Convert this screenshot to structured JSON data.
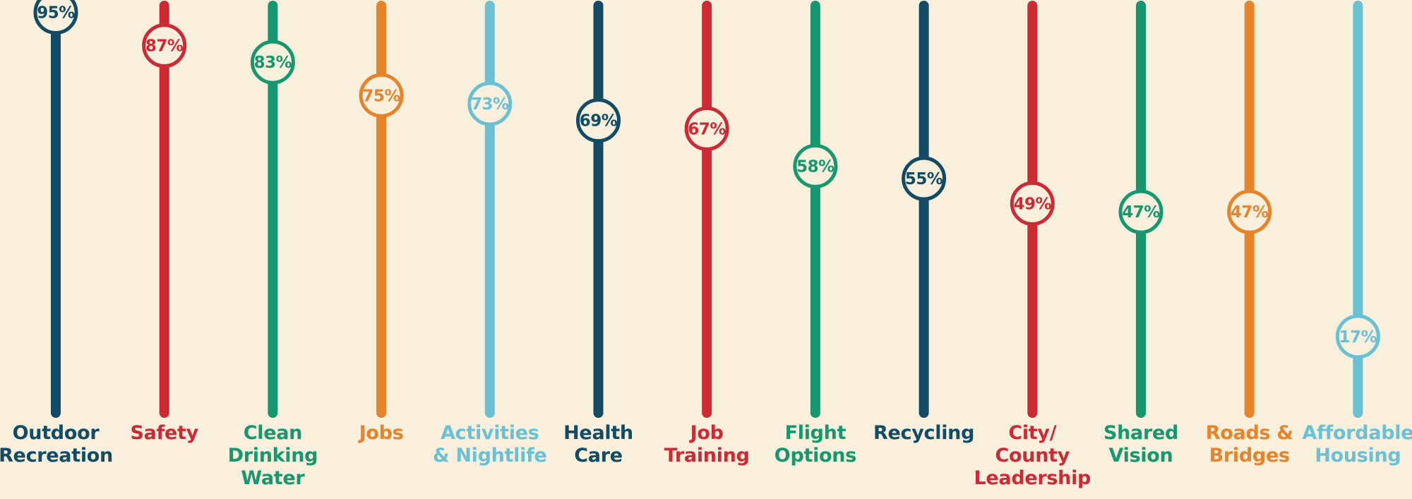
{
  "chart_data": {
    "type": "lollipop",
    "value_format": "percent",
    "ylim": [
      0,
      100
    ],
    "grid": false,
    "legend": "none",
    "title": "",
    "xlabel": "",
    "ylabel": "",
    "categories": [
      {
        "label": [
          "Outdoor",
          "Recreation"
        ],
        "value": 95,
        "color": "#124b63"
      },
      {
        "label": [
          "Safety"
        ],
        "value": 87,
        "color": "#cc2b36"
      },
      {
        "label": [
          "Clean",
          "Drinking",
          "Water"
        ],
        "value": 83,
        "color": "#17976e"
      },
      {
        "label": [
          "Jobs"
        ],
        "value": 75,
        "color": "#e5842b"
      },
      {
        "label": [
          "Activities",
          "& Nightlife"
        ],
        "value": 73,
        "color": "#6cc0d4"
      },
      {
        "label": [
          "Health",
          "Care"
        ],
        "value": 69,
        "color": "#124b63"
      },
      {
        "label": [
          "Job",
          "Training"
        ],
        "value": 67,
        "color": "#cc2b36"
      },
      {
        "label": [
          "Flight",
          "Options"
        ],
        "value": 58,
        "color": "#17976e"
      },
      {
        "label": [
          "Recycling"
        ],
        "value": 55,
        "color": "#124b63"
      },
      {
        "label": [
          "City/",
          "County",
          "Leadership"
        ],
        "value": 49,
        "color": "#cc2b36"
      },
      {
        "label": [
          "Shared",
          "Vision"
        ],
        "value": 47,
        "color": "#17976e"
      },
      {
        "label": [
          "Roads &",
          "Bridges"
        ],
        "value": 47,
        "color": "#e5842b"
      },
      {
        "label": [
          "Affordable",
          "Housing"
        ],
        "value": 17,
        "color": "#6cc0d4"
      }
    ]
  },
  "colors": {
    "background": "#f8efdd",
    "navy": "#124b63",
    "red": "#cc2b36",
    "green": "#17976e",
    "orange": "#e5842b",
    "light_blue": "#6cc0d4"
  }
}
